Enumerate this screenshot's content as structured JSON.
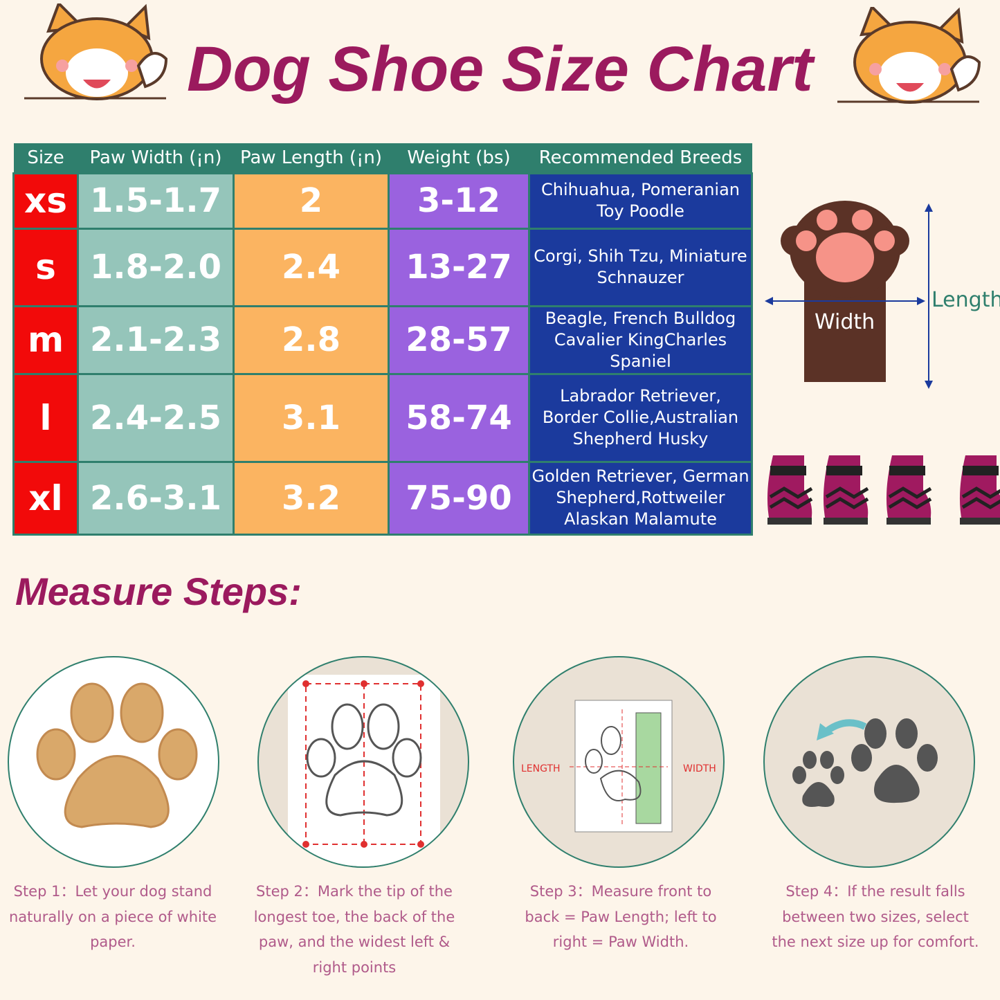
{
  "title": "Dog Shoe Size Chart",
  "table": {
    "headers": [
      "Size",
      "Paw Width (¡n)",
      "Paw Length (¡n)",
      "Weight (bs)",
      "Recommended Breeds"
    ],
    "rows": [
      {
        "size": "xs",
        "width": "1.5-1.7",
        "length": "2",
        "weight": "3-12",
        "breeds": "Chihuahua, Pomeranian Toy Poodle"
      },
      {
        "size": "s",
        "width": "1.8-2.0",
        "length": "2.4",
        "weight": "13-27",
        "breeds": "Corgi, Shih Tzu, Miniature Schnauzer"
      },
      {
        "size": "m",
        "width": "2.1-2.3",
        "length": "2.8",
        "weight": "28-57",
        "breeds": "Beagle, French Bulldog Cavalier KingCharles Spaniel"
      },
      {
        "size": "l",
        "width": "2.4-2.5",
        "length": "3.1",
        "weight": "58-74",
        "breeds": "Labrador Retriever, Border Collie,Australian Shepherd Husky"
      },
      {
        "size": "xl",
        "width": "2.6-3.1",
        "length": "3.2",
        "weight": "75-90",
        "breeds": "Golden Retriever, German Shepherd,Rottweiler Alaskan Malamute"
      }
    ]
  },
  "diagram": {
    "width_label": "Width",
    "length_label": "Length"
  },
  "measure_title": "Measure Steps:",
  "step3_labels": {
    "length": "LENGTH",
    "width": "WIDTH"
  },
  "steps": [
    "Step 1：Let your dog stand naturally on a piece of white paper.",
    "Step 2：Mark the tip of the longest toe, the back of the paw, and the widest left & right points",
    "Step 3：Measure front to back = Paw Length; left to right = Paw Width.",
    "Step 4：If the result falls between two sizes, select the next size up for comfort."
  ],
  "colors": {
    "title": "#9b1a5e",
    "header": "#2f7f6d",
    "size": "#f20a0a",
    "width": "#95c5ba",
    "length": "#fbb461",
    "weight": "#9a62df",
    "breeds": "#1b3a9d"
  }
}
